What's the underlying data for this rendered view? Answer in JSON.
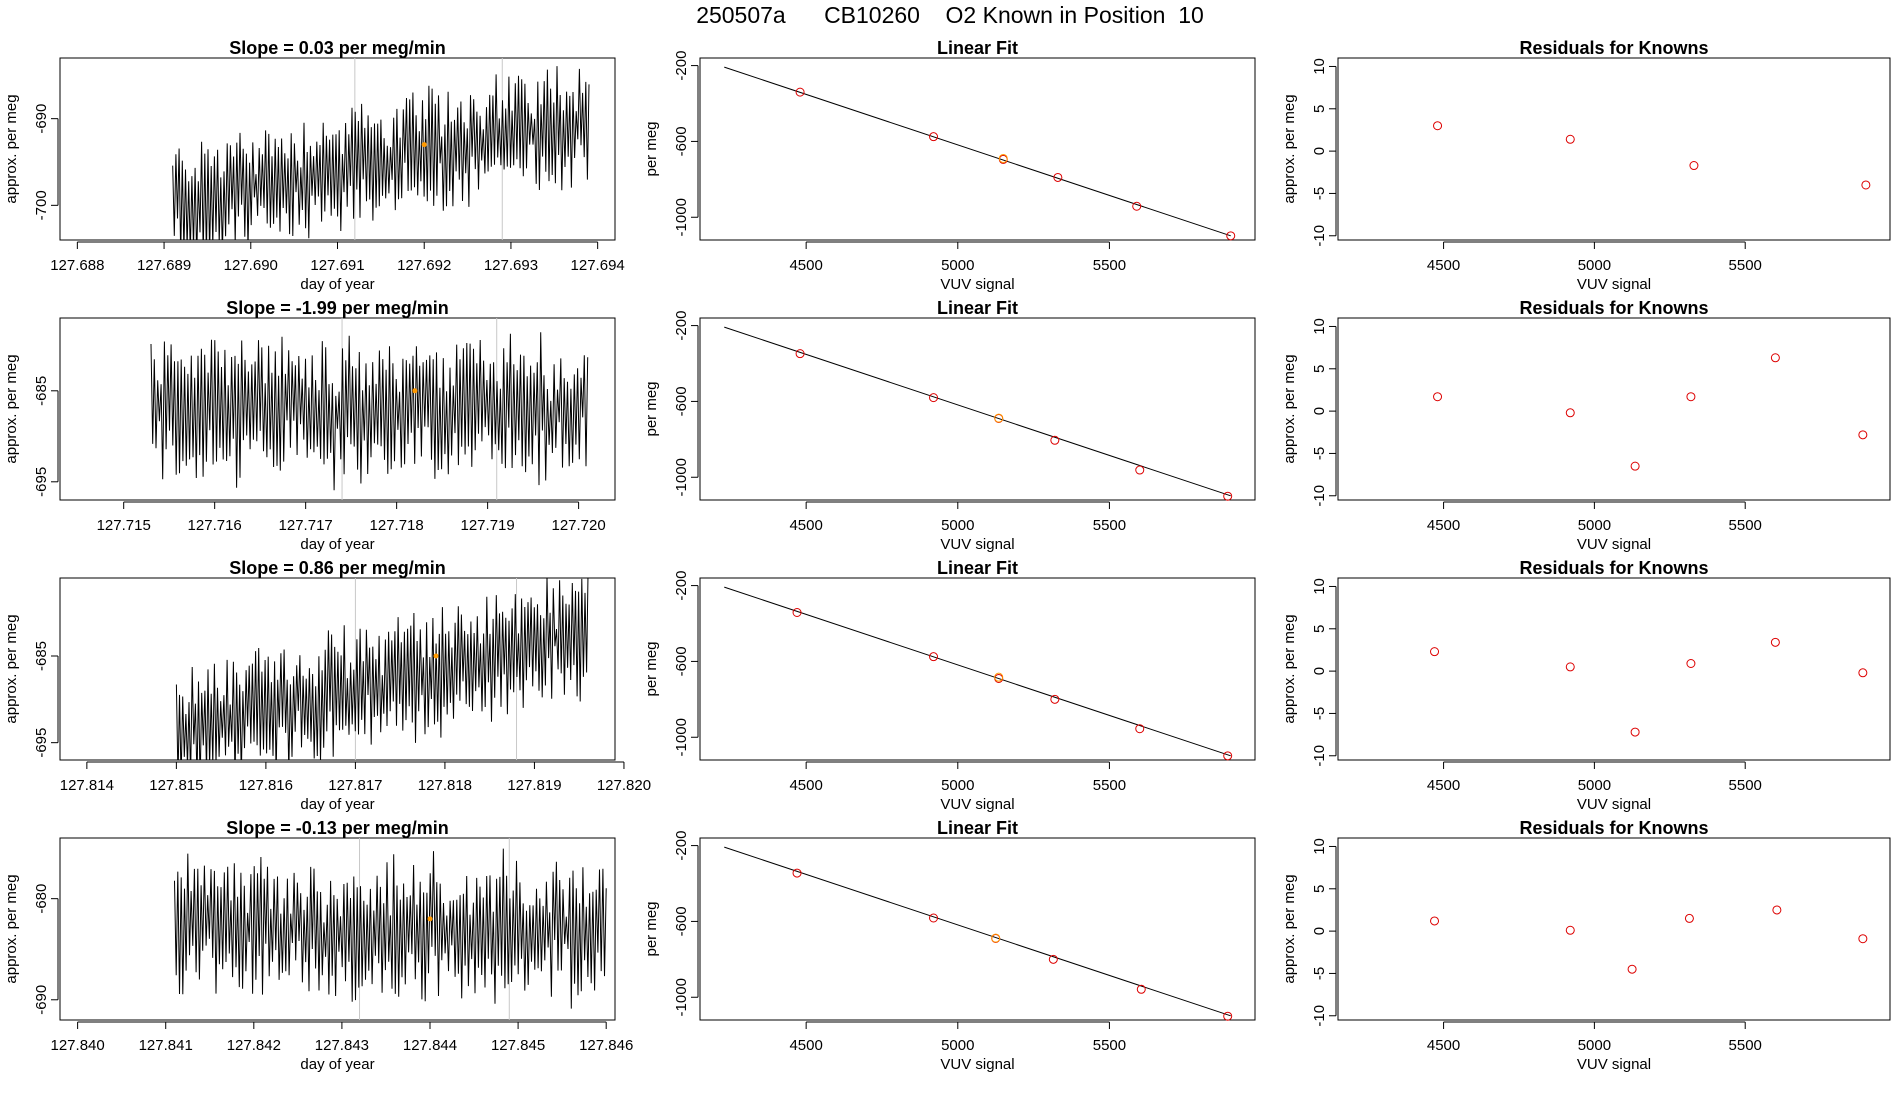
{
  "figure_title": "250507a      CB10260    O2 Known in Position  10",
  "chart_data": [
    {
      "type": "line",
      "title": "Slope =  0.03  per meg/min",
      "xlabel": "day of year",
      "ylabel": "approx. per meg",
      "xticks": [
        "127.688",
        "127.689",
        "127.690",
        "127.691",
        "127.692",
        "127.693",
        "127.694"
      ],
      "xlim": [
        127.6878,
        127.6942
      ],
      "yticks": [
        "-700",
        "-690"
      ],
      "ylim": [
        -704,
        -683
      ],
      "signal_start": 127.6891,
      "signal_end": 127.6939,
      "level_start": -700,
      "level_end": -690,
      "amplitude": 5.5,
      "marker": {
        "x": 127.692,
        "y": -693
      },
      "gray_lines": [
        127.6912,
        127.6929
      ]
    },
    {
      "type": "line",
      "title": "Slope =  -1.99  per meg/min",
      "xlabel": "day of year",
      "ylabel": "approx. per meg",
      "xticks": [
        "127.715",
        "127.716",
        "127.717",
        "127.718",
        "127.719",
        "127.720"
      ],
      "xlim": [
        127.7143,
        127.7204
      ],
      "yticks": [
        "-695",
        "-685"
      ],
      "ylim": [
        -697,
        -677
      ],
      "signal_start": 127.7153,
      "signal_end": 127.7201,
      "level_start": -687,
      "level_end": -687,
      "amplitude": 6,
      "marker": {
        "x": 127.7182,
        "y": -685
      },
      "gray_lines": [
        127.7174,
        127.7191
      ]
    },
    {
      "type": "line",
      "title": "Slope =  0.86  per meg/min",
      "xlabel": "day of year",
      "ylabel": "approx. per meg",
      "xticks": [
        "127.814",
        "127.815",
        "127.816",
        "127.817",
        "127.818",
        "127.819",
        "127.820"
      ],
      "xlim": [
        127.8137,
        127.8199
      ],
      "yticks": [
        "-695",
        "-685"
      ],
      "ylim": [
        -697,
        -676
      ],
      "signal_start": 127.815,
      "signal_end": 127.8196,
      "level_start": -694,
      "level_end": -682,
      "amplitude": 5.5,
      "marker": {
        "x": 127.8179,
        "y": -685
      },
      "gray_lines": [
        127.817,
        127.8188
      ]
    },
    {
      "type": "line",
      "title": "Slope =  -0.13  per meg/min",
      "xlabel": "day of year",
      "ylabel": "approx. per meg",
      "xticks": [
        "127.840",
        "127.841",
        "127.842",
        "127.843",
        "127.844",
        "127.845",
        "127.846"
      ],
      "xlim": [
        127.8398,
        127.8461
      ],
      "yticks": [
        "-690",
        "-680"
      ],
      "ylim": [
        -692,
        -674
      ],
      "signal_start": 127.8411,
      "signal_end": 127.846,
      "level_start": -683,
      "level_end": -683,
      "amplitude": 5.5,
      "marker": {
        "x": 127.844,
        "y": -682
      },
      "gray_lines": [
        127.8432,
        127.8449
      ]
    },
    {
      "type": "scatter",
      "title": "Linear Fit",
      "xlabel": "VUV signal",
      "ylabel": "per meg",
      "xticks": [
        "4500",
        "5000",
        "5500"
      ],
      "xlim": [
        4150,
        5980
      ],
      "yticks": [
        "-200",
        "-600",
        "-1000"
      ],
      "ylim": [
        -1120,
        -160
      ],
      "line": {
        "x": [
          4230,
          5900
        ],
        "y": [
          -208,
          -1098
        ]
      },
      "points_x": [
        4480,
        4920,
        5150,
        5330,
        5590,
        5900
      ],
      "points_y": [
        -340,
        -575,
        -695,
        -790,
        -942,
        -1098
      ],
      "orange_point": {
        "x": 5150,
        "y": -690
      }
    },
    {
      "type": "scatter",
      "title": "Linear Fit",
      "xlabel": "VUV signal",
      "ylabel": "per meg",
      "xticks": [
        "4500",
        "5000",
        "5500"
      ],
      "xlim": [
        4150,
        5980
      ],
      "yticks": [
        "-200",
        "-600",
        "-1000"
      ],
      "ylim": [
        -1120,
        -160
      ],
      "line": {
        "x": [
          4230,
          5900
        ],
        "y": [
          -208,
          -1098
        ]
      },
      "points_x": [
        4480,
        4920,
        5135,
        5320,
        5600,
        5890
      ],
      "points_y": [
        -348,
        -580,
        -690,
        -805,
        -962,
        -1100
      ],
      "orange_point": {
        "x": 5135,
        "y": -688
      }
    },
    {
      "type": "scatter",
      "title": "Linear Fit",
      "xlabel": "VUV signal",
      "ylabel": "per meg",
      "xticks": [
        "4500",
        "5000",
        "5500"
      ],
      "xlim": [
        4150,
        5980
      ],
      "yticks": [
        "-200",
        "-600",
        "-1000"
      ],
      "ylim": [
        -1120,
        -160
      ],
      "line": {
        "x": [
          4230,
          5900
        ],
        "y": [
          -208,
          -1098
        ]
      },
      "points_x": [
        4470,
        4920,
        5135,
        5320,
        5600,
        5890
      ],
      "points_y": [
        -342,
        -575,
        -690,
        -800,
        -955,
        -1098
      ],
      "orange_point": {
        "x": 5135,
        "y": -683
      }
    },
    {
      "type": "scatter",
      "title": "Linear Fit",
      "xlabel": "VUV signal",
      "ylabel": "per meg",
      "xticks": [
        "4500",
        "5000",
        "5500"
      ],
      "xlim": [
        4150,
        5980
      ],
      "yticks": [
        "-200",
        "-600",
        "-1000"
      ],
      "ylim": [
        -1120,
        -160
      ],
      "line": {
        "x": [
          4230,
          5900
        ],
        "y": [
          -208,
          -1098
        ]
      },
      "points_x": [
        4470,
        4920,
        5125,
        5315,
        5605,
        5890
      ],
      "points_y": [
        -345,
        -582,
        -690,
        -800,
        -958,
        -1100
      ],
      "orange_point": {
        "x": 5125,
        "y": -688
      }
    },
    {
      "type": "scatter",
      "title": "Residuals for Knowns",
      "xlabel": "VUV signal",
      "ylabel": "approx. per meg",
      "xticks": [
        "4500",
        "5000",
        "5500"
      ],
      "xlim": [
        4150,
        5980
      ],
      "yticks": [
        "-10",
        "-5",
        "0",
        "5",
        "10"
      ],
      "ylim": [
        -10.5,
        11
      ],
      "points_x": [
        4480,
        4920,
        5330,
        5900
      ],
      "points_y": [
        3.0,
        1.4,
        -1.7,
        -4.0
      ]
    },
    {
      "type": "scatter",
      "title": "Residuals for Knowns",
      "xlabel": "VUV signal",
      "ylabel": "approx. per meg",
      "xticks": [
        "4500",
        "5000",
        "5500"
      ],
      "xlim": [
        4150,
        5980
      ],
      "yticks": [
        "-10",
        "-5",
        "0",
        "5",
        "10"
      ],
      "ylim": [
        -10.5,
        11
      ],
      "points_x": [
        4480,
        4920,
        5135,
        5320,
        5600,
        5890
      ],
      "points_y": [
        1.7,
        -0.2,
        -6.5,
        1.7,
        6.3,
        -2.8
      ]
    },
    {
      "type": "scatter",
      "title": "Residuals for Knowns",
      "xlabel": "VUV signal",
      "ylabel": "approx. per meg",
      "xticks": [
        "4500",
        "5000",
        "5500"
      ],
      "xlim": [
        4150,
        5980
      ],
      "yticks": [
        "-10",
        "-5",
        "0",
        "5",
        "10"
      ],
      "ylim": [
        -10.5,
        11
      ],
      "points_x": [
        4470,
        4920,
        5135,
        5320,
        5600,
        5890
      ],
      "points_y": [
        2.3,
        0.5,
        -7.2,
        0.9,
        3.4,
        -0.2
      ]
    },
    {
      "type": "scatter",
      "title": "Residuals for Knowns",
      "xlabel": "VUV signal",
      "ylabel": "approx. per meg",
      "xticks": [
        "4500",
        "5000",
        "5500"
      ],
      "xlim": [
        4150,
        5980
      ],
      "yticks": [
        "-10",
        "-5",
        "0",
        "5",
        "10"
      ],
      "ylim": [
        -10.5,
        11
      ],
      "points_x": [
        4470,
        4920,
        5125,
        5315,
        5605,
        5890
      ],
      "points_y": [
        1.2,
        0.1,
        -4.5,
        1.5,
        2.5,
        -0.9
      ]
    }
  ]
}
